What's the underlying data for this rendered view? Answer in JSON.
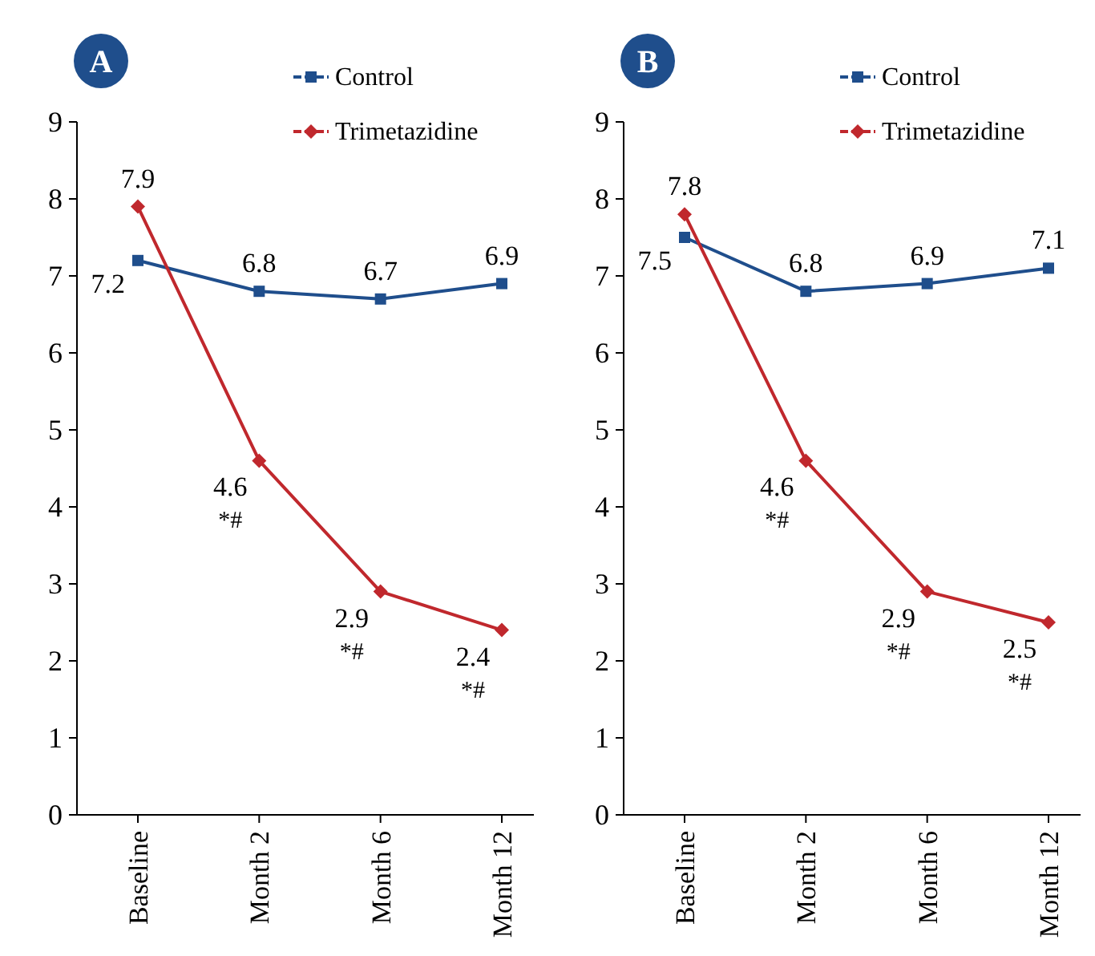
{
  "chart_data": [
    {
      "type": "line",
      "title": "A",
      "categories": [
        "Baseline",
        "Month 2",
        "Month 6",
        "Month 12"
      ],
      "ylim": [
        0,
        9
      ],
      "yticks": [
        0,
        1,
        2,
        3,
        4,
        5,
        6,
        7,
        8,
        9
      ],
      "grid": false,
      "legend": "top",
      "data_labels": true,
      "line_style": "solid",
      "series": [
        {
          "name": "Control",
          "color": "#1f4e8c",
          "marker": "square",
          "values": [
            7.2,
            6.8,
            6.7,
            6.9
          ]
        },
        {
          "name": "Trimetazidine",
          "color": "#c0282d",
          "marker": "diamond",
          "values": [
            7.9,
            4.6,
            2.9,
            2.4
          ]
        }
      ],
      "annotations": [
        {
          "text": "*#",
          "x": "Month 2",
          "y": 4.6
        },
        {
          "text": "*#",
          "x": "Month 6",
          "y": 2.9
        },
        {
          "text": "*#",
          "x": "Month 12",
          "y": 2.4
        }
      ]
    },
    {
      "type": "line",
      "title": "B",
      "categories": [
        "Baseline",
        "Month 2",
        "Month 6",
        "Month 12"
      ],
      "ylim": [
        0,
        9
      ],
      "yticks": [
        0,
        1,
        2,
        3,
        4,
        5,
        6,
        7,
        8,
        9
      ],
      "grid": false,
      "legend": "top",
      "data_labels": true,
      "line_style": "solid",
      "series": [
        {
          "name": "Control",
          "color": "#1f4e8c",
          "marker": "square",
          "values": [
            7.5,
            6.8,
            6.9,
            7.1
          ]
        },
        {
          "name": "Trimetazidine",
          "color": "#c0282d",
          "marker": "diamond",
          "values": [
            7.8,
            4.6,
            2.9,
            2.5
          ]
        }
      ],
      "annotations": [
        {
          "text": "*#",
          "x": "Month 2",
          "y": 4.6
        },
        {
          "text": "*#",
          "x": "Month 6",
          "y": 2.9
        },
        {
          "text": "*#",
          "x": "Month 12",
          "y": 2.5
        }
      ]
    }
  ]
}
